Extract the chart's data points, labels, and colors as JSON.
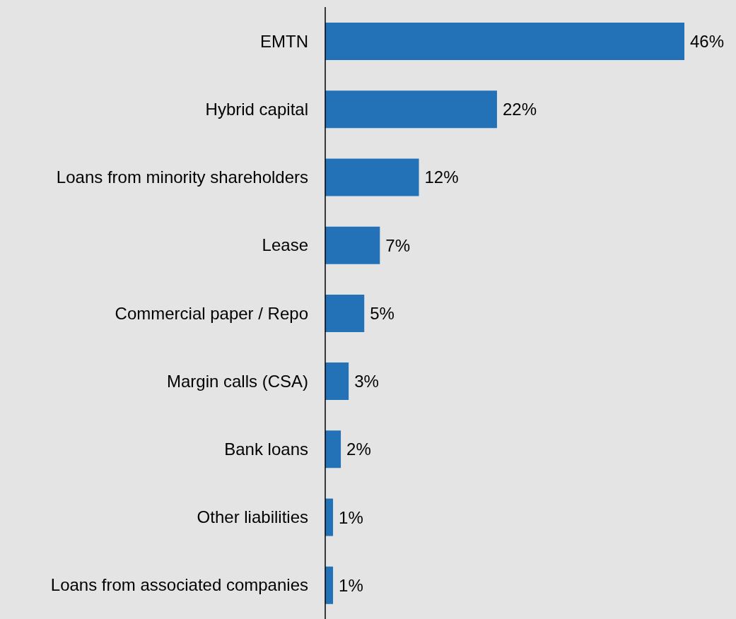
{
  "chart_data": {
    "type": "bar",
    "orientation": "horizontal",
    "categories": [
      "EMTN",
      "Hybrid capital",
      "Loans from minority shareholders",
      "Lease",
      "Commercial paper / Repo",
      "Margin calls (CSA)",
      "Bank loans",
      "Other liabilities",
      "Loans from associated companies"
    ],
    "values": [
      46,
      22,
      12,
      7,
      5,
      3,
      2,
      1,
      1
    ],
    "value_labels": [
      "46%",
      "22%",
      "12%",
      "7%",
      "5%",
      "3%",
      "2%",
      "1%",
      "1%"
    ],
    "color": "#2372b8",
    "grid": false,
    "legend": false
  }
}
